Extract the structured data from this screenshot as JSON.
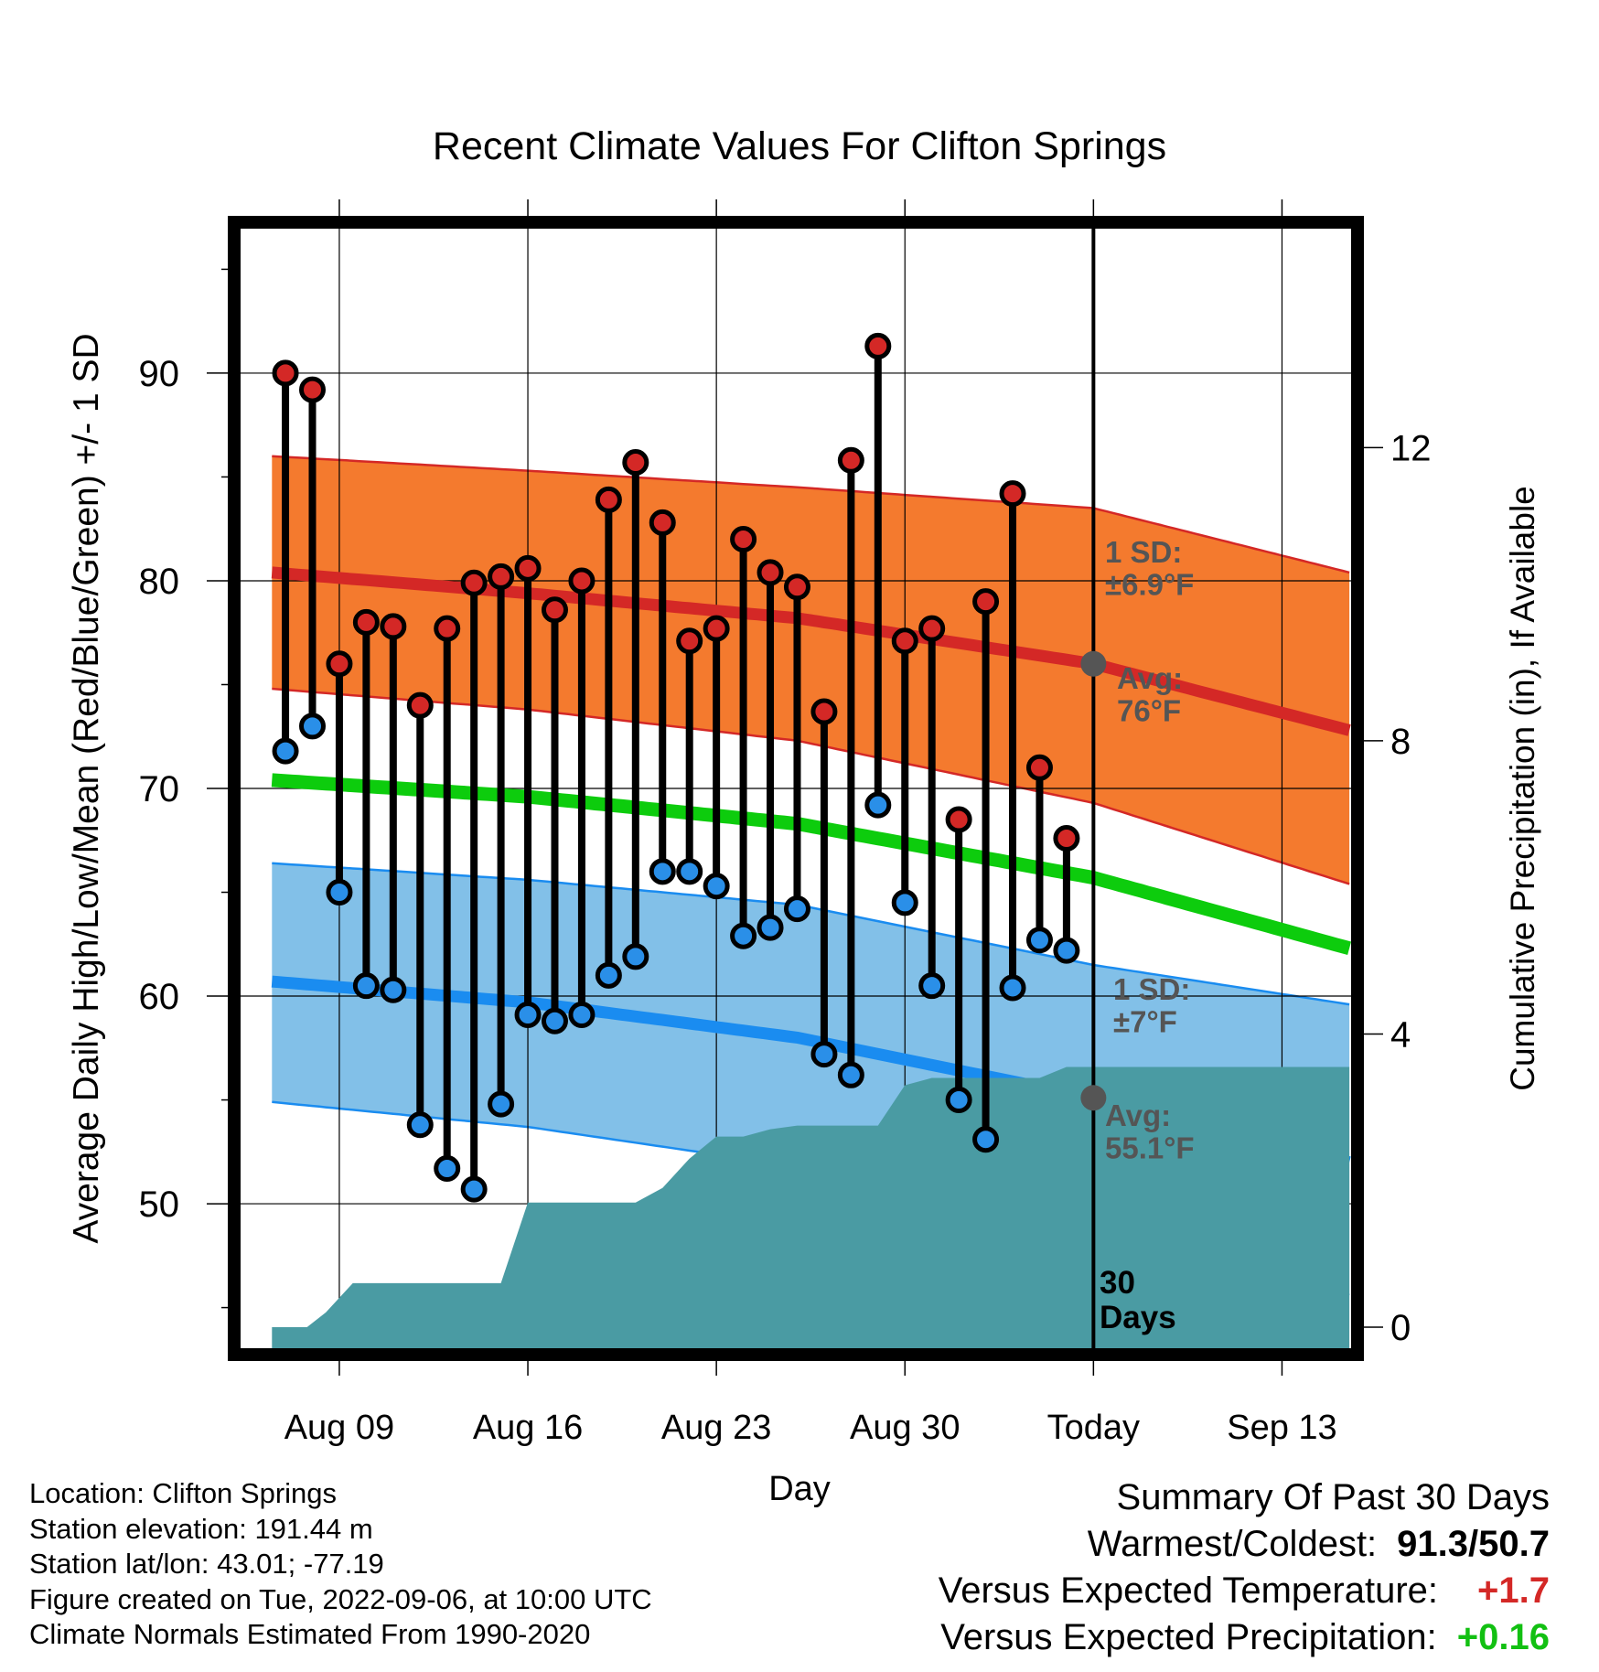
{
  "chart_data": {
    "type": "line",
    "title": "Recent Climate Values For Clifton Springs",
    "xlabel": "Day",
    "ylabel": "Average Daily High/Low/Mean (Red/Blue/Green) +/- 1 SD",
    "y2label": "Cumulative Precipitation (in), If Available",
    "x_tick_labels": [
      "Aug 09",
      "Aug 16",
      "Aug 23",
      "Aug 30",
      "Today",
      "Sep 13"
    ],
    "x_tick_days": [
      9,
      16,
      23,
      30,
      37,
      44
    ],
    "xlim": [
      5.3,
      46.6
    ],
    "ylim": [
      43,
      97
    ],
    "y_ticks": [
      50,
      60,
      70,
      80,
      90
    ],
    "y2lim": [
      -0.3,
      15
    ],
    "y2_ticks": [
      0,
      4,
      8,
      12
    ],
    "grid": true,
    "today_label": "30\nDays",
    "daily_highs": {
      "days": [
        7,
        8,
        9,
        10,
        11,
        12,
        13,
        14,
        15,
        16,
        17,
        18,
        19,
        20,
        21,
        22,
        23,
        24,
        25,
        26,
        27,
        28,
        29,
        30,
        31,
        32,
        33,
        34,
        35,
        36
      ],
      "values": [
        90.0,
        89.2,
        76.0,
        78.0,
        77.8,
        74.0,
        77.7,
        79.9,
        80.2,
        80.6,
        78.6,
        80.0,
        83.9,
        85.7,
        82.8,
        77.1,
        77.7,
        82.0,
        80.4,
        79.7,
        73.7,
        85.8,
        91.3,
        77.1,
        77.7,
        68.5,
        79.0,
        84.2,
        71.0,
        67.6
      ]
    },
    "daily_lows": {
      "days": [
        7,
        8,
        9,
        10,
        11,
        12,
        13,
        14,
        15,
        16,
        17,
        18,
        19,
        20,
        21,
        22,
        23,
        24,
        25,
        26,
        27,
        28,
        29,
        30,
        31,
        32,
        33,
        34,
        35,
        36
      ],
      "values": [
        71.8,
        73.0,
        65.0,
        60.5,
        60.3,
        53.8,
        51.7,
        50.7,
        54.8,
        59.1,
        58.8,
        59.1,
        61.0,
        61.9,
        66.0,
        66.0,
        65.3,
        62.9,
        63.3,
        64.2,
        57.2,
        56.2,
        69.2,
        64.5,
        60.5,
        55.0,
        53.1,
        60.4,
        62.7,
        62.2
      ]
    },
    "normal_high": {
      "days": [
        6.5,
        16,
        26,
        37,
        46.5
      ],
      "avg": [
        80.4,
        79.4,
        78.2,
        76.0,
        72.8
      ],
      "upper": [
        86.0,
        85.3,
        84.5,
        83.5,
        80.4
      ],
      "lower": [
        74.8,
        73.8,
        72.3,
        69.3,
        65.4
      ]
    },
    "normal_low": {
      "days": [
        6.5,
        16,
        26,
        37,
        46.5
      ],
      "avg": [
        60.7,
        59.7,
        58.0,
        55.1,
        52.0
      ],
      "upper": [
        66.4,
        65.6,
        64.4,
        61.5,
        59.6
      ],
      "lower": [
        54.9,
        53.7,
        51.8,
        48.8,
        45.6
      ]
    },
    "normal_mean": {
      "days": [
        6.5,
        16,
        26,
        37,
        46.5
      ],
      "values": [
        70.4,
        69.6,
        68.3,
        65.7,
        62.3
      ]
    },
    "cumulative_precip": {
      "days": [
        6.5,
        7.8,
        8.5,
        9.5,
        15.0,
        16.0,
        20.0,
        21.0,
        22.0,
        23.0,
        24.0,
        25.0,
        26.0,
        29.0,
        30.0,
        31.0,
        32.0,
        35.0,
        36.0,
        46.5
      ],
      "values": [
        0,
        0,
        0.2,
        0.6,
        0.6,
        1.7,
        1.7,
        1.9,
        2.3,
        2.6,
        2.6,
        2.7,
        2.75,
        2.75,
        3.3,
        3.4,
        3.4,
        3.4,
        3.55,
        3.55
      ]
    },
    "annotations": {
      "high_sd": "1 SD:\n±6.9°F",
      "high_avg": "Avg:\n76°F",
      "low_sd": "1 SD:\n±7°F",
      "low_avg": "Avg:\n55.1°F"
    },
    "colors": {
      "high_band": "#f47a2e",
      "high_line": "#d42826",
      "high_edge": "#d42826",
      "low_band": "#82c0e8",
      "low_line": "#1a8cf0",
      "low_edge": "#1a8cf0",
      "mean_line": "#0dcc0d",
      "precip": "#4a9ba3",
      "high_dot": "#d42826",
      "low_dot": "#2a8fe8",
      "today_dot": "#555555",
      "annotation": "#555555"
    }
  },
  "footer": {
    "location": "Location: Clifton Springs",
    "elevation": "Station elevation: 191.44 m",
    "latlon": "Station lat/lon: 43.01; -77.19",
    "created": "Figure created on Tue, 2022-09-06, at 10:00 UTC",
    "normals": "Climate Normals Estimated From 1990-2020"
  },
  "summary": {
    "title": "Summary Of Past 30 Days",
    "warmest_label": "Warmest/Coldest:",
    "warmest_value": "91.3/50.7",
    "temp_label": "Versus Expected Temperature:",
    "temp_value": "+1.7",
    "temp_color": "#d42826",
    "precip_label": "Versus Expected Precipitation:",
    "precip_value": "+0.16",
    "precip_color": "#12c012"
  }
}
